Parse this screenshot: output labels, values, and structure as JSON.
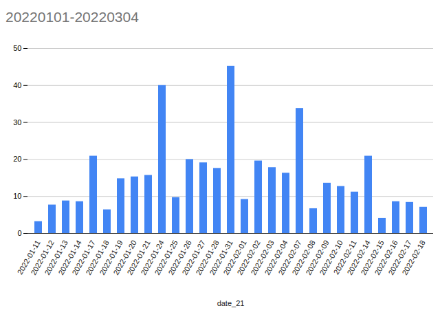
{
  "chart_data": {
    "type": "bar",
    "title": "20220101-20220304",
    "x_label": "date_21",
    "categories": [
      "2022-01-11",
      "2022-01-12",
      "2022-01-13",
      "2022-01-14",
      "2022-01-17",
      "2022-01-18",
      "2022-01-19",
      "2022-01-20",
      "2022-01-21",
      "2022-01-24",
      "2022-01-25",
      "2022-01-26",
      "2022-01-27",
      "2022-01-28",
      "2022-01-31",
      "2022-02-01",
      "2022-02-02",
      "2022-02-03",
      "2022-02-04",
      "2022-02-07",
      "2022-02-08",
      "2022-02-09",
      "2022-02-10",
      "2022-02-11",
      "2022-02-14",
      "2022-02-15",
      "2022-02-16",
      "2022-02-17",
      "2022-02-18"
    ],
    "values": [
      3.2,
      7.7,
      8.8,
      8.6,
      20.9,
      6.4,
      14.8,
      15.3,
      15.7,
      40.0,
      9.7,
      20.0,
      19.1,
      17.6,
      45.2,
      9.2,
      19.6,
      17.8,
      16.3,
      33.8,
      6.7,
      13.6,
      12.7,
      11.2,
      20.9,
      4.1,
      8.6,
      8.4,
      7.1
    ],
    "color": "#4285f4",
    "ylim": [
      0,
      50
    ],
    "yticks": [
      0,
      10,
      20,
      30,
      40,
      50
    ],
    "grid": true,
    "tick_labels": "x"
  }
}
